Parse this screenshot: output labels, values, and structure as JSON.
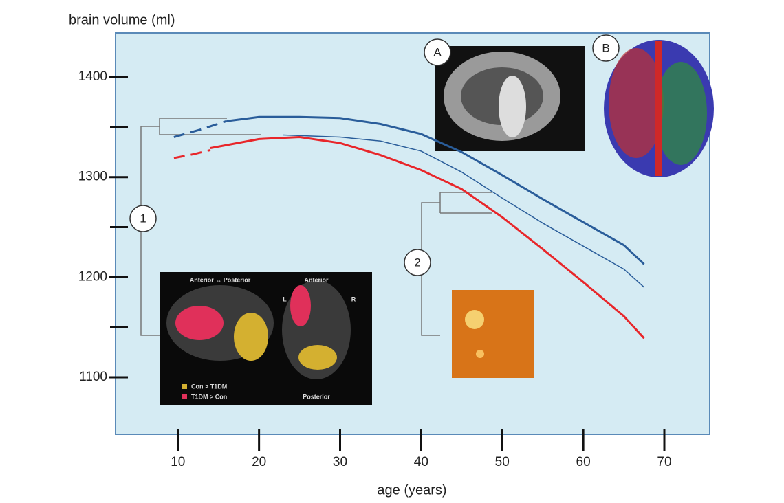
{
  "chart_data": {
    "type": "line",
    "y_axis_label": "brain volume (ml)",
    "x_axis_label": "age (years)",
    "xlim": [
      2.3,
      75.6
    ],
    "ylim": [
      1043,
      1444
    ],
    "xticks": [
      10,
      20,
      30,
      40,
      50,
      60,
      70
    ],
    "yticks": [
      1100,
      1200,
      1300,
      1400
    ],
    "yminorticks": [
      1150,
      1250,
      1350
    ],
    "series": [
      {
        "color": "#2a5d9a",
        "width": 3,
        "style": "dashed",
        "x": [
          9.5,
          13,
          16
        ],
        "values": [
          1340,
          1348,
          1356
        ]
      },
      {
        "color": "#2a5d9a",
        "width": 3,
        "style": "solid",
        "x": [
          16,
          20,
          25,
          30,
          35,
          40,
          45,
          50,
          55,
          60,
          65,
          67.5
        ],
        "values": [
          1356,
          1360,
          1360,
          1359,
          1353,
          1343,
          1325,
          1302,
          1278,
          1255,
          1232,
          1213
        ]
      },
      {
        "color": "#2a5d9a",
        "width": 1.5,
        "style": "solid",
        "x": [
          23,
          30,
          35,
          40,
          45,
          50,
          55,
          60,
          65,
          67.5
        ],
        "values": [
          1342,
          1340,
          1336,
          1326,
          1305,
          1279,
          1254,
          1231,
          1208,
          1190
        ]
      },
      {
        "color": "#e8262a",
        "width": 3,
        "style": "dashed",
        "x": [
          9.5,
          12,
          14
        ],
        "values": [
          1319,
          1323,
          1327
        ]
      },
      {
        "color": "#e8262a",
        "width": 3,
        "style": "solid",
        "x": [
          14,
          20,
          25,
          30,
          35,
          40,
          45,
          50,
          55,
          60,
          65,
          67.5
        ],
        "values": [
          1329,
          1338,
          1340,
          1334,
          1322,
          1307,
          1288,
          1260,
          1228,
          1195,
          1161,
          1139
        ]
      }
    ],
    "callouts": [
      "A",
      "B",
      "1",
      "2"
    ],
    "inset_texts": {
      "left_title": "Anterior ↔ Posterior",
      "right_top": "Anterior",
      "left_side": "L",
      "right_side": "R",
      "right_bottom": "Posterior",
      "legend_yellow": "Con > T1DM",
      "legend_red": "T1DM > Con"
    }
  }
}
